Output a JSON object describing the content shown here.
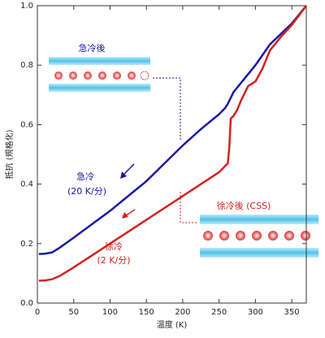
{
  "chart_data": {
    "type": "line",
    "x_label": "温度 (K)",
    "y_label": "抵抗 (規格化)",
    "x": [
      2,
      10,
      20,
      30,
      50,
      75,
      100,
      125,
      150,
      175,
      200,
      225,
      250,
      258,
      262,
      264,
      266,
      270,
      275,
      280,
      290,
      300,
      310,
      320,
      335,
      350,
      370
    ],
    "series": [
      {
        "color": "#1a1aa6",
        "values": [
          0.165,
          0.166,
          0.17,
          0.185,
          0.22,
          0.265,
          0.31,
          0.36,
          0.41,
          0.47,
          0.53,
          0.585,
          0.635,
          0.655,
          0.67,
          0.68,
          0.69,
          0.71,
          0.725,
          0.74,
          0.77,
          0.8,
          0.835,
          0.87,
          0.905,
          0.94,
          1.0
        ]
      },
      {
        "color": "#d42020",
        "values": [
          0.075,
          0.076,
          0.08,
          0.09,
          0.12,
          0.16,
          0.2,
          0.24,
          0.28,
          0.32,
          0.36,
          0.4,
          0.44,
          0.46,
          0.47,
          0.52,
          0.62,
          0.63,
          0.65,
          0.68,
          0.73,
          0.745,
          0.79,
          0.85,
          0.895,
          0.935,
          1.0
        ]
      }
    ],
    "xlim": [
      0,
      370
    ],
    "ylim": [
      0,
      1
    ],
    "xticks": [
      0,
      50,
      100,
      150,
      200,
      250,
      300,
      350
    ],
    "yticks": [
      {
        "value": 0,
        "label": "0.0"
      },
      0.2,
      0.4,
      0.6,
      0.8,
      {
        "value": 1,
        "label": "1.0"
      }
    ],
    "annotations": [
      {
        "text": "急冷後",
        "color": "#1a1aa6"
      },
      {
        "text": "徐冷後 (CSS)",
        "color": "#d42020"
      },
      {
        "text": "急冷",
        "color": "#1a1aa6"
      },
      {
        "text": "(20 K/分)",
        "color": "#1a1aa6"
      },
      {
        "text": "徐冷",
        "color": "#d42020"
      },
      {
        "text": "(2 K/分)",
        "color": "#d42020"
      }
    ]
  }
}
